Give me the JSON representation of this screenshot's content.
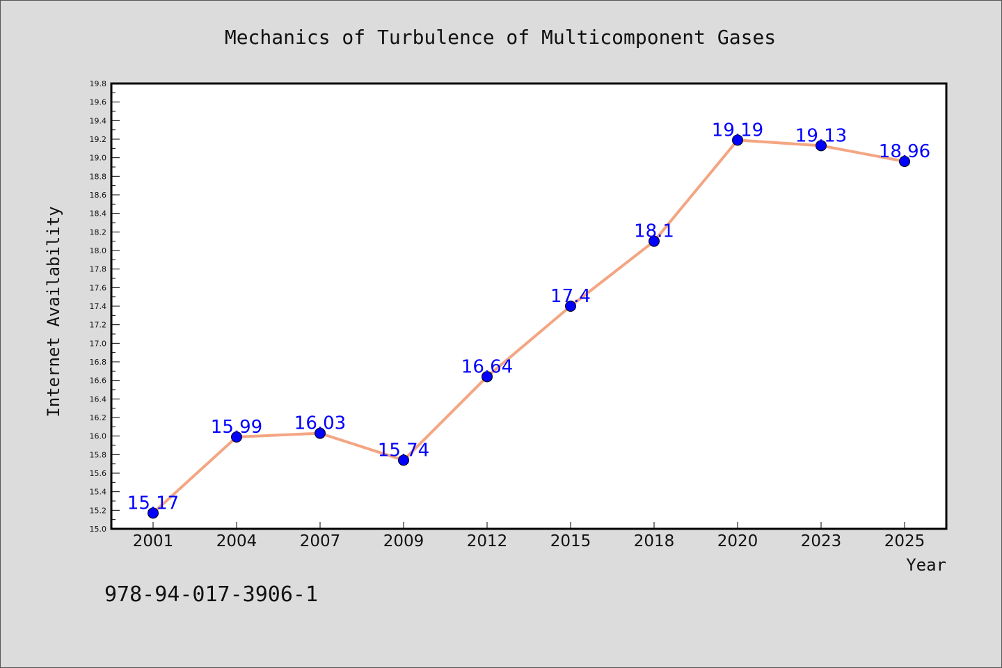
{
  "chart_data": {
    "type": "line",
    "title": "Mechanics of Turbulence of Multicomponent Gases",
    "xlabel": "Year",
    "ylabel": "Internet Availability",
    "categories": [
      "2001",
      "2004",
      "2007",
      "2009",
      "2012",
      "2015",
      "2018",
      "2020",
      "2023",
      "2025"
    ],
    "series": [
      {
        "values": [
          15.17,
          15.99,
          16.03,
          15.74,
          16.64,
          17.4,
          18.1,
          19.19,
          19.13,
          18.96
        ]
      }
    ],
    "data_labels": [
      "15.17",
      "15.99",
      "16.03",
      "15.74",
      "16.64",
      "17.4",
      "18.1",
      "19.19",
      "19.13",
      "18.96"
    ],
    "ylim": [
      15.0,
      19.8
    ],
    "yticks": [
      "15.0",
      "15.2",
      "15.4",
      "15.6",
      "15.8",
      "16.0",
      "16.2",
      "16.4",
      "16.6",
      "16.8",
      "17.0",
      "17.2",
      "17.4",
      "17.6",
      "17.8",
      "18.0",
      "18.2",
      "18.4",
      "18.6",
      "18.8",
      "19.0",
      "19.2",
      "19.4",
      "19.6",
      "19.8"
    ],
    "grid": false,
    "legend": "none",
    "colors": {
      "line": "#f4a582",
      "marker": "#0000ff",
      "label": "#0000ff",
      "plot_background": "#ffffff",
      "figure_background": "#dcdcdc"
    }
  },
  "annotation": "978-94-017-3906-1"
}
